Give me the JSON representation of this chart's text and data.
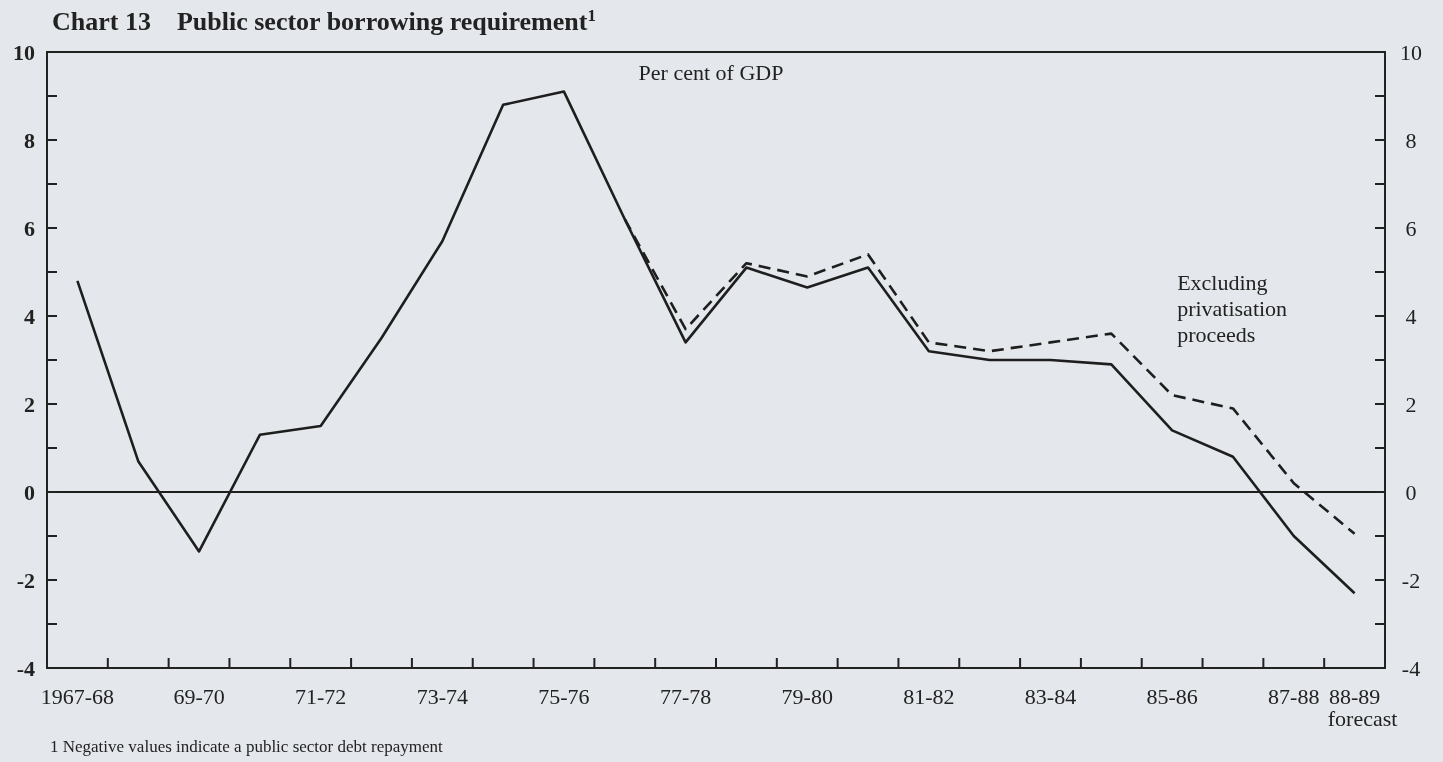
{
  "chart_data": {
    "type": "line",
    "title": "Chart 13    Public sector borrowing requirement$^{1}$",
    "ylabel": "Per cent of GDP",
    "categories": [
      "1967-68",
      null,
      "69-70",
      null,
      "71-72",
      null,
      "73-74",
      null,
      "75-76",
      null,
      "77-78",
      null,
      "79-80",
      null,
      "81-82",
      null,
      "83-84",
      null,
      "85-86",
      null,
      "87-88",
      "88-89\nforecast"
    ],
    "series": [
      {
        "color": "#1e1e1e",
        "line_style": "solid",
        "values": [
          4.8,
          0.7,
          -1.35,
          1.3,
          1.5,
          3.5,
          5.7,
          8.8,
          9.1,
          6.2,
          3.4,
          5.1,
          4.65,
          5.1,
          3.2,
          3.0,
          3.0,
          2.9,
          1.4,
          0.8,
          -1.0,
          -2.3
        ]
      },
      {
        "name": "Excluding privatisation proceeds",
        "color": "#1e1e1e",
        "line_style": "dashed",
        "values": [
          null,
          null,
          null,
          null,
          null,
          null,
          null,
          null,
          null,
          6.2,
          3.7,
          5.2,
          4.9,
          5.4,
          3.4,
          3.2,
          3.4,
          3.6,
          2.2,
          1.9,
          0.2,
          -0.95
        ]
      }
    ],
    "ylim": [
      -4,
      10
    ],
    "yticks": [
      -4,
      {
        "value": -3,
        "label": null
      },
      -2,
      {
        "value": -1,
        "label": null
      },
      0,
      {
        "value": 1,
        "label": null
      },
      2,
      {
        "value": 3,
        "label": null
      },
      4,
      {
        "value": 5,
        "label": null
      },
      6,
      {
        "value": 7,
        "label": null
      },
      8,
      {
        "value": 9,
        "label": null
      },
      10
    ],
    "y2lim": [
      -4,
      10
    ],
    "y2ticks": [
      -4,
      {
        "value": -3,
        "label": null
      },
      -2,
      {
        "value": -1,
        "label": null
      },
      0,
      {
        "value": 1,
        "label": null
      },
      2,
      {
        "value": 3,
        "label": null
      },
      4,
      {
        "value": 5,
        "label": null
      },
      6,
      {
        "value": 7,
        "label": null
      },
      8,
      {
        "value": 9,
        "label": null
      },
      10
    ],
    "ref_lines": [
      {
        "axis": "y",
        "value": 0,
        "color": "#1e1e1e",
        "line_style": "solid"
      }
    ],
    "annotations": [
      "1 Negative values indicate a public sector debt repayment"
    ],
    "grid": false,
    "legend": false,
    "marker": "none"
  }
}
